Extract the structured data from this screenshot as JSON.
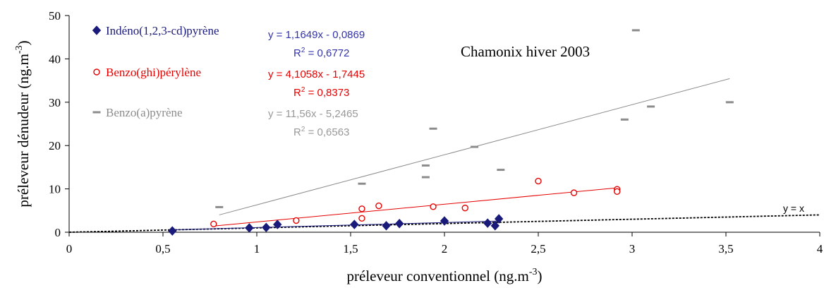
{
  "chart_data": {
    "type": "scatter",
    "annotation_title": "Chamonix hiver 2003",
    "xlabel": "préleveur conventionnel (ng.m",
    "xlabel_sup": "-3",
    "xlabel_suffix": ")",
    "ylabel": "préleveur dénudeur (ng.m",
    "ylabel_sup": "-3",
    "ylabel_suffix": ")",
    "xlim": [
      0,
      4
    ],
    "ylim": [
      0,
      50
    ],
    "x_ticks": [
      0,
      0.5,
      1,
      1.5,
      2,
      2.5,
      3,
      3.5,
      4
    ],
    "x_tick_labels": [
      "0",
      "0,5",
      "1",
      "1,5",
      "2",
      "2,5",
      "3",
      "3,5",
      "4"
    ],
    "y_ticks": [
      0,
      10,
      20,
      30,
      40,
      50
    ],
    "y_tick_labels": [
      "0",
      "10",
      "20",
      "30",
      "40",
      "50"
    ],
    "grid": false,
    "legend_position": "top-left",
    "series": [
      {
        "name": "Indéno(1,2,3-cd)pyrène",
        "marker": "diamond",
        "color": "#1a1a7a",
        "eq_color": "#3333aa",
        "equation": "y = 1,1649x - 0,0869",
        "r2_label": "R",
        "r2_sup": "2",
        "r2_value": " = 0,6772",
        "slope": 1.1649,
        "intercept": -0.0869,
        "fit_x": [
          0.55,
          2.29
        ],
        "points": [
          [
            0.55,
            0.3
          ],
          [
            0.96,
            1.0
          ],
          [
            1.05,
            1.1
          ],
          [
            1.11,
            1.8
          ],
          [
            1.52,
            1.8
          ],
          [
            1.69,
            1.5
          ],
          [
            1.76,
            2.0
          ],
          [
            2.0,
            2.6
          ],
          [
            2.23,
            2.1
          ],
          [
            2.27,
            1.5
          ],
          [
            2.29,
            3.1
          ]
        ]
      },
      {
        "name": "Benzo(ghi)pérylène",
        "marker": "circle",
        "color": "#e60000",
        "eq_color": "#e60000",
        "equation": "y = 4,1058x - 1,7445",
        "r2_label": "R",
        "r2_sup": "2",
        "r2_value": " = 0,8373",
        "slope": 4.1058,
        "intercept": -1.7445,
        "fit_x": [
          0.77,
          2.92
        ],
        "points": [
          [
            0.77,
            1.9
          ],
          [
            1.21,
            2.7
          ],
          [
            1.56,
            5.4
          ],
          [
            1.56,
            3.2
          ],
          [
            1.65,
            6.1
          ],
          [
            1.94,
            5.9
          ],
          [
            2.11,
            5.6
          ],
          [
            2.5,
            11.8
          ],
          [
            2.69,
            9.1
          ],
          [
            2.92,
            9.9
          ],
          [
            2.92,
            9.4
          ]
        ]
      },
      {
        "name": "Benzo(a)pyrène",
        "marker": "dash",
        "color": "#8c8c8c",
        "eq_color": "#999999",
        "equation": "y = 11,56x - 5,2465",
        "r2_label": "R",
        "r2_sup": "2",
        "r2_value": " = 0,6563",
        "slope": 11.56,
        "intercept": -5.2465,
        "fit_x": [
          0.8,
          3.52
        ],
        "points": [
          [
            0.8,
            5.8
          ],
          [
            1.56,
            11.2
          ],
          [
            1.9,
            15.4
          ],
          [
            1.9,
            12.7
          ],
          [
            1.94,
            23.9
          ],
          [
            2.16,
            19.7
          ],
          [
            2.3,
            14.4
          ],
          [
            2.96,
            26.0
          ],
          [
            3.02,
            46.6
          ],
          [
            3.1,
            29.0
          ],
          [
            3.52,
            30.0
          ]
        ]
      }
    ],
    "identity_line": {
      "label": "y = x",
      "slope": 1,
      "intercept": 0
    }
  }
}
